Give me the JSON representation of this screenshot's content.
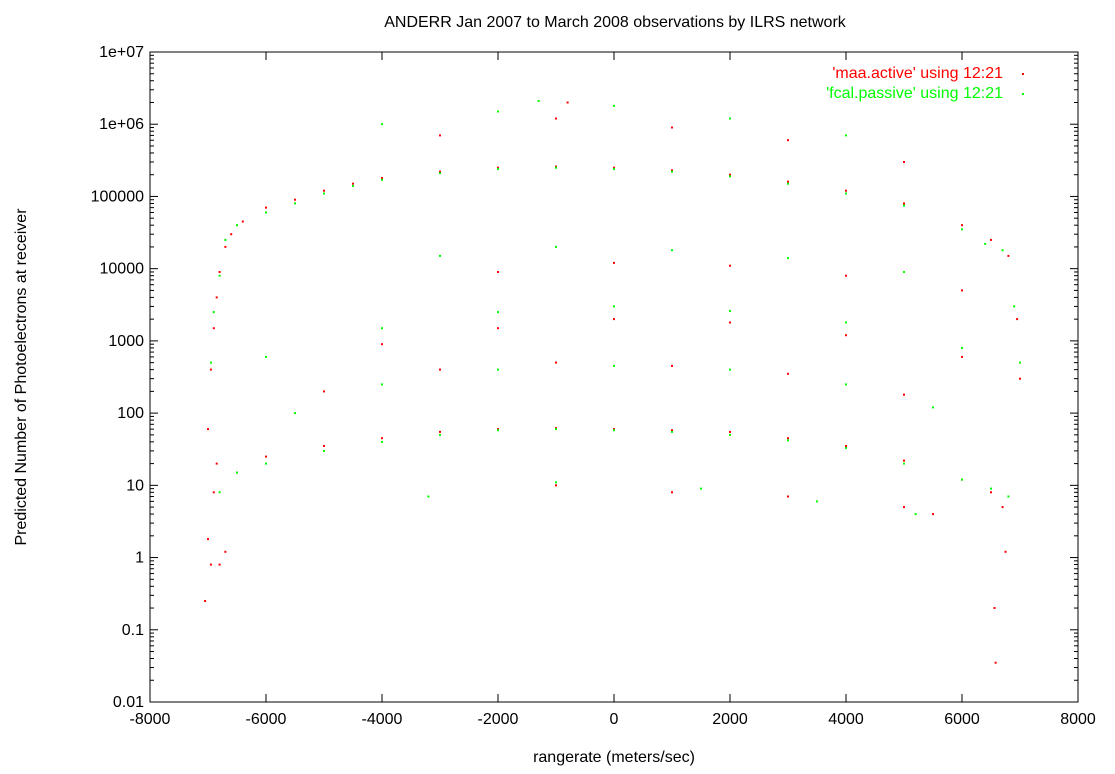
{
  "chart_data": {
    "type": "scatter",
    "title": "ANDERR Jan 2007 to March 2008 observations by ILRS network",
    "xlabel": "rangerate (meters/sec)",
    "ylabel": "Predicted Number of Photoelectrons at receiver",
    "xlim": [
      -8000,
      8000
    ],
    "ylim": [
      0.01,
      10000000
    ],
    "yscale": "log",
    "x_ticks": [
      "-8000",
      "-6000",
      "-4000",
      "-2000",
      "0",
      "2000",
      "4000",
      "6000",
      "8000"
    ],
    "y_ticks": [
      "0.01",
      "0.1",
      "1",
      "10",
      "100",
      "1000",
      "10000",
      "100000",
      "1e+06",
      "1e+07"
    ],
    "legend_position": "top-right",
    "grid": false,
    "series": [
      {
        "name": "'maa.active' using 12:21",
        "color": "#ff0000",
        "points": [
          [
            -7050,
            0.25
          ],
          [
            -7000,
            1.8
          ],
          [
            -6950,
            0.8
          ],
          [
            -6900,
            8
          ],
          [
            -6850,
            20
          ],
          [
            -6800,
            0.8
          ],
          [
            -6700,
            1.2
          ],
          [
            -7000,
            60
          ],
          [
            -6950,
            400
          ],
          [
            -6900,
            1500
          ],
          [
            -6850,
            4000
          ],
          [
            -6800,
            9000
          ],
          [
            -6700,
            20000
          ],
          [
            -6600,
            30000
          ],
          [
            -6400,
            45000
          ],
          [
            -6000,
            70000
          ],
          [
            -5500,
            90000
          ],
          [
            -5000,
            120000
          ],
          [
            -4500,
            150000
          ],
          [
            -4000,
            180000
          ],
          [
            -3000,
            220000
          ],
          [
            -2000,
            250000
          ],
          [
            -1000,
            260000
          ],
          [
            0,
            250000
          ],
          [
            1000,
            230000
          ],
          [
            2000,
            200000
          ],
          [
            3000,
            160000
          ],
          [
            4000,
            120000
          ],
          [
            5000,
            80000
          ],
          [
            6000,
            40000
          ],
          [
            6500,
            25000
          ],
          [
            6800,
            15000
          ],
          [
            6950,
            2000
          ],
          [
            7000,
            300
          ],
          [
            -6500,
            15
          ],
          [
            -6000,
            25
          ],
          [
            -5000,
            35
          ],
          [
            -4000,
            45
          ],
          [
            -3000,
            55
          ],
          [
            -2000,
            60
          ],
          [
            -1000,
            62
          ],
          [
            0,
            60
          ],
          [
            1000,
            58
          ],
          [
            2000,
            55
          ],
          [
            3000,
            45
          ],
          [
            4000,
            35
          ],
          [
            5000,
            22
          ],
          [
            6000,
            12
          ],
          [
            6500,
            8
          ],
          [
            6700,
            5
          ],
          [
            6750,
            1.2
          ],
          [
            6580,
            0.035
          ],
          [
            6560,
            0.2
          ],
          [
            -5000,
            200
          ],
          [
            -3000,
            400
          ],
          [
            -1000,
            500
          ],
          [
            1000,
            450
          ],
          [
            3000,
            350
          ],
          [
            5000,
            180
          ],
          [
            -4000,
            900
          ],
          [
            -2000,
            1500
          ],
          [
            0,
            2000
          ],
          [
            2000,
            1800
          ],
          [
            4000,
            1200
          ],
          [
            6000,
            600
          ],
          [
            -2000,
            9000
          ],
          [
            0,
            12000
          ],
          [
            2000,
            11000
          ],
          [
            4000,
            8000
          ],
          [
            6000,
            5000
          ],
          [
            -3000,
            700000
          ],
          [
            -1000,
            1200000
          ],
          [
            -800,
            2000000
          ],
          [
            1000,
            900000
          ],
          [
            3000,
            600000
          ],
          [
            5000,
            300000
          ],
          [
            -1000,
            10
          ],
          [
            1000,
            8
          ],
          [
            3000,
            7
          ],
          [
            5000,
            5
          ],
          [
            5500,
            4
          ]
        ]
      },
      {
        "name": "'fcal.passive' using 12:21",
        "color": "#00ff00",
        "points": [
          [
            -6950,
            500
          ],
          [
            -6900,
            2500
          ],
          [
            -6800,
            8000
          ],
          [
            -6700,
            25000
          ],
          [
            -6500,
            40000
          ],
          [
            -6000,
            60000
          ],
          [
            -5500,
            80000
          ],
          [
            -5000,
            110000
          ],
          [
            -4500,
            140000
          ],
          [
            -4000,
            170000
          ],
          [
            -3000,
            210000
          ],
          [
            -2000,
            240000
          ],
          [
            -1000,
            250000
          ],
          [
            0,
            240000
          ],
          [
            1000,
            220000
          ],
          [
            2000,
            190000
          ],
          [
            3000,
            150000
          ],
          [
            4000,
            110000
          ],
          [
            5000,
            75000
          ],
          [
            6000,
            35000
          ],
          [
            6400,
            22000
          ],
          [
            6700,
            18000
          ],
          [
            6900,
            3000
          ],
          [
            7000,
            500
          ],
          [
            -6800,
            8
          ],
          [
            -6500,
            15
          ],
          [
            -6000,
            20
          ],
          [
            -5000,
            30
          ],
          [
            -4000,
            40
          ],
          [
            -3000,
            50
          ],
          [
            -2000,
            58
          ],
          [
            -1000,
            60
          ],
          [
            0,
            58
          ],
          [
            1000,
            55
          ],
          [
            2000,
            50
          ],
          [
            3000,
            42
          ],
          [
            4000,
            33
          ],
          [
            5000,
            20
          ],
          [
            6000,
            12
          ],
          [
            6500,
            9
          ],
          [
            6800,
            7
          ],
          [
            -5500,
            100
          ],
          [
            -4000,
            250
          ],
          [
            -2000,
            400
          ],
          [
            0,
            450
          ],
          [
            2000,
            400
          ],
          [
            4000,
            250
          ],
          [
            5500,
            120
          ],
          [
            -6000,
            600
          ],
          [
            -4000,
            1500
          ],
          [
            -2000,
            2500
          ],
          [
            0,
            3000
          ],
          [
            2000,
            2600
          ],
          [
            4000,
            1800
          ],
          [
            6000,
            800
          ],
          [
            -3000,
            15000
          ],
          [
            -1000,
            20000
          ],
          [
            1000,
            18000
          ],
          [
            3000,
            14000
          ],
          [
            5000,
            9000
          ],
          [
            -4000,
            1000000
          ],
          [
            -2000,
            1500000
          ],
          [
            -1300,
            2100000
          ],
          [
            0,
            1800000
          ],
          [
            2000,
            1200000
          ],
          [
            4000,
            700000
          ],
          [
            -3200,
            7
          ],
          [
            -1000,
            11
          ],
          [
            1500,
            9
          ],
          [
            3500,
            6
          ],
          [
            5200,
            4
          ]
        ]
      }
    ]
  }
}
